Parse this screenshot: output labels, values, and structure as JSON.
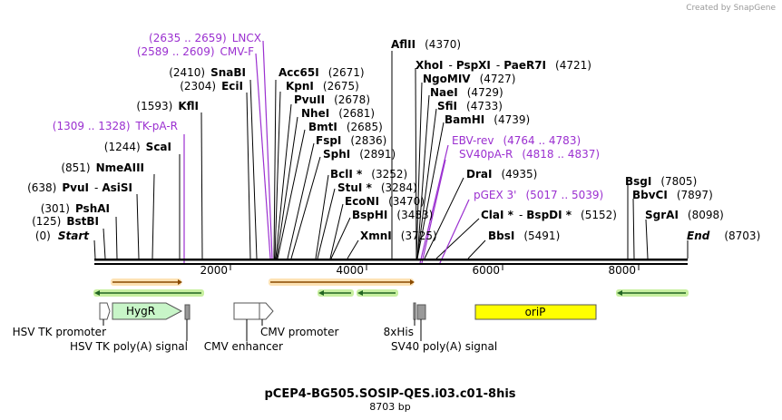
{
  "watermark": "Created by  SnapGene",
  "title": "pCEP4-BG505.SOSIP-QES.i03.c01-8his",
  "subtitle": "8703 bp",
  "total_bp": 8703,
  "scale_ticks": [
    "2000",
    "4000",
    "6000",
    "8000"
  ],
  "sites_left": [
    {
      "pos": "(2635 .. 2659)",
      "name": "LNCX",
      "kind": "primer"
    },
    {
      "pos": "(2589 .. 2609)",
      "name": "CMV-F",
      "kind": "primer"
    },
    {
      "pos": "(2410)",
      "name": "SnaBI",
      "kind": "enzyme"
    },
    {
      "pos": "(2304)",
      "name": "EciI",
      "kind": "enzyme"
    },
    {
      "pos": "(1593)",
      "name": "KflI",
      "kind": "enzyme"
    },
    {
      "pos": "(1309 .. 1328)",
      "name": "TK-pA-R",
      "kind": "primer"
    },
    {
      "pos": "(1244)",
      "name": "ScaI",
      "kind": "enzyme"
    },
    {
      "pos": "(851)",
      "name": "NmeAIII",
      "kind": "enzyme"
    },
    {
      "pos": "(638)",
      "name": "PvuI",
      "sep": "-",
      "name2": "AsiSI",
      "kind": "enzyme"
    },
    {
      "pos": "(301)",
      "name": "PshAI",
      "kind": "enzyme"
    },
    {
      "pos": "(125)",
      "name": "BstBI",
      "kind": "enzyme"
    },
    {
      "pos": "(0)",
      "name": "Start",
      "kind": "end"
    }
  ],
  "sites_mid": [
    {
      "name": "Acc65I",
      "pos": "(2671)"
    },
    {
      "name": "KpnI",
      "pos": "(2675)"
    },
    {
      "name": "PvuII",
      "pos": "(2678)"
    },
    {
      "name": "NheI",
      "pos": "(2681)"
    },
    {
      "name": "BmtI",
      "pos": "(2685)"
    },
    {
      "name": "FspI",
      "pos": "(2836)"
    },
    {
      "name": "SphI",
      "pos": "(2891)"
    },
    {
      "name": "BclI *",
      "pos": "(3252)"
    },
    {
      "name": "StuI *",
      "pos": "(3284)"
    },
    {
      "name": "EcoNI",
      "pos": "(3470)"
    },
    {
      "name": "BspHI",
      "pos": "(3483)"
    },
    {
      "name": "XmnI",
      "pos": "(3725)"
    },
    {
      "name": "AflII",
      "pos": "(4370)"
    }
  ],
  "sites_right": [
    {
      "name": "XhoI",
      "sep": "-",
      "name2": "PspXI",
      "sep2": "-",
      "name3": "PaeR7I",
      "pos": "(4721)",
      "kind": "enzyme"
    },
    {
      "name": "NgoMIV",
      "pos": "(4727)",
      "kind": "enzyme"
    },
    {
      "name": "NaeI",
      "pos": "(4729)",
      "kind": "enzyme"
    },
    {
      "name": "SfiI",
      "pos": "(4733)",
      "kind": "enzyme"
    },
    {
      "name": "BamHI",
      "pos": "(4739)",
      "kind": "enzyme"
    },
    {
      "name": "EBV-rev",
      "pos": "(4764 .. 4783)",
      "kind": "primer"
    },
    {
      "name": "SV40pA-R",
      "pos": "(4818 .. 4837)",
      "kind": "primer"
    },
    {
      "name": "DraI",
      "pos": "(4935)",
      "kind": "enzyme"
    },
    {
      "name": "pGEX 3'",
      "pos": "(5017 .. 5039)",
      "kind": "primer"
    },
    {
      "name": "ClaI *",
      "sep": "-",
      "name2": "BspDI *",
      "pos": "(5152)",
      "kind": "enzyme"
    },
    {
      "name": "BbsI",
      "pos": "(5491)",
      "kind": "enzyme"
    }
  ],
  "sites_far_right": [
    {
      "name": "BsgI",
      "pos": "(7805)"
    },
    {
      "name": "BbvCI",
      "pos": "(7897)"
    },
    {
      "name": "SgrAI",
      "pos": "(8098)"
    },
    {
      "name": "End",
      "pos": "(8703)"
    }
  ],
  "features": {
    "hygr": "HygR",
    "orip": "oriP"
  },
  "feature_labels": {
    "hsv_tk_promoter": "HSV TK promoter",
    "hsv_tk_polya": "HSV TK poly(A) signal",
    "cmv_enhancer": "CMV enhancer",
    "cmv_promoter": "CMV promoter",
    "his8": "8xHis",
    "sv40_polya": "SV40 poly(A) signal"
  },
  "colors": {
    "primer": "#9b30d0",
    "hygr_fill": "#c8f5c8",
    "orip_fill": "#ffff00",
    "orf_orange": "#f0a030",
    "arrow_green": "#228822"
  }
}
